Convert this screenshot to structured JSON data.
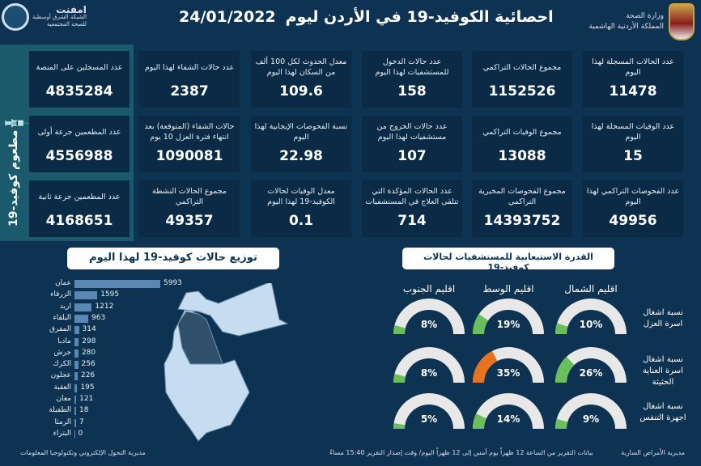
{
  "header": {
    "title": "احصائية الكوفيد-19 في الأردن ليوم",
    "date": "24/01/2022",
    "ministry_line1": "وزارة الصحة",
    "ministry_line2": "المملكة الأردنية الهاشمية",
    "emphnet_name": "امفنت",
    "emphnet_line1": "الشبكة الشرق أوسطية",
    "emphnet_line2": "للصحة المجتمعية"
  },
  "vaccine": {
    "title": "مطعوم كوفيد-19",
    "icon": "syringe-icon",
    "cards": [
      {
        "label": "عدد المسجلين على المنصة",
        "value": "4835284"
      },
      {
        "label": "عدد المطعمين جرعة أولى",
        "value": "4556988"
      },
      {
        "label": "عدد المطعمين جرعة ثانية",
        "value": "4168651"
      }
    ]
  },
  "stats": [
    [
      {
        "label": "عدد الحالات المسجلة لهذا اليوم",
        "value": "11478"
      },
      {
        "label": "مجموع الحالات التراكمي",
        "value": "1152526"
      },
      {
        "label": "عدد حالات الدخول للمستشفيات لهذا اليوم",
        "value": "158"
      },
      {
        "label": "معدل الحدوث لكل 100 ألف من السكان لهذا اليوم",
        "value": "109.6"
      },
      {
        "label": "عدد حالات الشفاء لهذا اليوم",
        "value": "2387"
      }
    ],
    [
      {
        "label": "عدد الوفيات المسجلة لهذا اليوم",
        "value": "15"
      },
      {
        "label": "مجموع الوفيات التراكمي",
        "value": "13088"
      },
      {
        "label": "عدد حالات الخروج من مستشفيات لهذا اليوم",
        "value": "107"
      },
      {
        "label": "نسبة الفحوصات الإيجابية لهذا اليوم",
        "value": "22.98"
      },
      {
        "label": "حالات الشفاء (المتوقعة) بعد انتهاء فترة العزل 10 يوم",
        "value": "1090081"
      }
    ],
    [
      {
        "label": "عدد الفحوصات التراكمي لهذا اليوم",
        "value": "49956"
      },
      {
        "label": "مجموع الفحوصات المخبرية التراكمي",
        "value": "14393752"
      },
      {
        "label": "عدد الحالات المؤكدة التي تتلقى العلاج في المستشفيات",
        "value": "714"
      },
      {
        "label": "معدل الوفيات لحالات الكوفيد-19 لهذا اليوم",
        "value": "0.1"
      },
      {
        "label": "مجموع الحالات النشطة التراكمي",
        "value": "49357"
      }
    ]
  ],
  "distribution": {
    "title": "توزيع حالات كوفيد-19 لهذا اليوم",
    "bar_color": "#5b87b5",
    "rows": [
      {
        "name": "عمان",
        "value": 5993
      },
      {
        "name": "الزرقاء",
        "value": 1595
      },
      {
        "name": "اربد",
        "value": 1212
      },
      {
        "name": "البلقاء",
        "value": 963
      },
      {
        "name": "المفرق",
        "value": 314
      },
      {
        "name": "مادبا",
        "value": 298
      },
      {
        "name": "جرش",
        "value": 280
      },
      {
        "name": "الكرك",
        "value": 256
      },
      {
        "name": "عجلون",
        "value": 226
      },
      {
        "name": "العقبة",
        "value": 195
      },
      {
        "name": "معان",
        "value": 121
      },
      {
        "name": "الطفيلة",
        "value": 18
      },
      {
        "name": "الرمثا",
        "value": 7
      },
      {
        "name": "البتراء",
        "value": 0
      }
    ]
  },
  "capacity": {
    "title": "القدرة الاستيعابية للمستشفيات لحالات كوفيد-19",
    "regions": [
      "اقليم الشمال",
      "اقليم الوسط",
      "اقليم الجنوب"
    ],
    "rows": [
      {
        "label": "نسبة اشغال اسرة العزل",
        "values": [
          10,
          19,
          8
        ]
      },
      {
        "label": "نسبة اشغال اسرة العناية الحثيثة",
        "values": [
          26,
          35,
          8
        ]
      },
      {
        "label": "نسبة اشغال اجهزة التنفس",
        "values": [
          9,
          14,
          5
        ]
      }
    ],
    "colors": {
      "normal": "#6abf5a",
      "warning": "#e8731e",
      "track": "#e8e8e8"
    }
  },
  "footer": {
    "left": "مديرية التحول الإلكتروني وتكنولوجيا المعلومات",
    "middle": "بيانات التقرير من الساعة 12 ظهراً يوم أمس إلى 12 ظهراً اليوم/ وقت إصدار التقرير 15:40 مساءً",
    "right": "مديرية الأمراض السارية"
  }
}
